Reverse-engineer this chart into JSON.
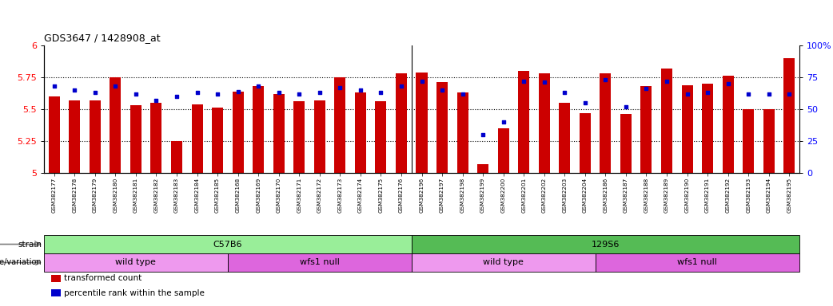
{
  "title": "GDS3647 / 1428908_at",
  "samples": [
    "GSM382177",
    "GSM382178",
    "GSM382179",
    "GSM382180",
    "GSM382181",
    "GSM382182",
    "GSM382183",
    "GSM382184",
    "GSM382185",
    "GSM382168",
    "GSM382169",
    "GSM382170",
    "GSM382171",
    "GSM382172",
    "GSM382173",
    "GSM382174",
    "GSM382175",
    "GSM382176",
    "GSM382196",
    "GSM382197",
    "GSM382198",
    "GSM382199",
    "GSM382200",
    "GSM382201",
    "GSM382202",
    "GSM382203",
    "GSM382204",
    "GSM382186",
    "GSM382187",
    "GSM382188",
    "GSM382189",
    "GSM382190",
    "GSM382191",
    "GSM382192",
    "GSM382193",
    "GSM382194",
    "GSM382195"
  ],
  "bar_values": [
    5.6,
    5.57,
    5.57,
    5.75,
    5.53,
    5.55,
    5.25,
    5.54,
    5.51,
    5.64,
    5.68,
    5.62,
    5.56,
    5.57,
    5.75,
    5.63,
    5.56,
    5.78,
    5.79,
    5.71,
    5.63,
    5.07,
    5.35,
    5.8,
    5.78,
    5.55,
    5.47,
    5.78,
    5.46,
    5.68,
    5.82,
    5.69,
    5.7,
    5.76,
    5.5,
    5.5,
    5.9
  ],
  "percentile_values": [
    68,
    65,
    63,
    68,
    62,
    57,
    60,
    63,
    62,
    64,
    68,
    63,
    62,
    63,
    67,
    65,
    63,
    68,
    72,
    65,
    62,
    30,
    40,
    72,
    71,
    63,
    55,
    73,
    52,
    66,
    72,
    62,
    63,
    70,
    62,
    62,
    62
  ],
  "ylim_left": [
    5.0,
    6.0
  ],
  "ylim_right": [
    0,
    100
  ],
  "yticks_left": [
    5.0,
    5.25,
    5.5,
    5.75,
    6.0
  ],
  "ytick_labels_left": [
    "5",
    "5.25",
    "5.5",
    "5.75",
    "6"
  ],
  "yticks_right": [
    0,
    25,
    50,
    75,
    100
  ],
  "ytick_labels_right": [
    "0",
    "25",
    "50",
    "75",
    "100%"
  ],
  "hgrid_vals": [
    5.25,
    5.5,
    5.75
  ],
  "bar_color": "#CC0000",
  "dot_color": "#0000CC",
  "strain_groups": [
    {
      "label": "C57B6",
      "start": 0,
      "end": 18,
      "color": "#99EE99"
    },
    {
      "label": "129S6",
      "start": 18,
      "end": 37,
      "color": "#55BB55"
    }
  ],
  "genotype_groups": [
    {
      "label": "wild type",
      "start": 0,
      "end": 9,
      "color": "#EE99EE"
    },
    {
      "label": "wfs1 null",
      "start": 9,
      "end": 18,
      "color": "#DD66DD"
    },
    {
      "label": "wild type",
      "start": 18,
      "end": 27,
      "color": "#EE99EE"
    },
    {
      "label": "wfs1 null",
      "start": 27,
      "end": 37,
      "color": "#DD66DD"
    }
  ],
  "legend_items": [
    {
      "label": "transformed count",
      "color": "#CC0000"
    },
    {
      "label": "percentile rank within the sample",
      "color": "#0000CC"
    }
  ],
  "strain_label": "strain",
  "geno_label": "genotype/variation",
  "fig_width": 10.42,
  "fig_height": 3.84,
  "dpi": 100
}
